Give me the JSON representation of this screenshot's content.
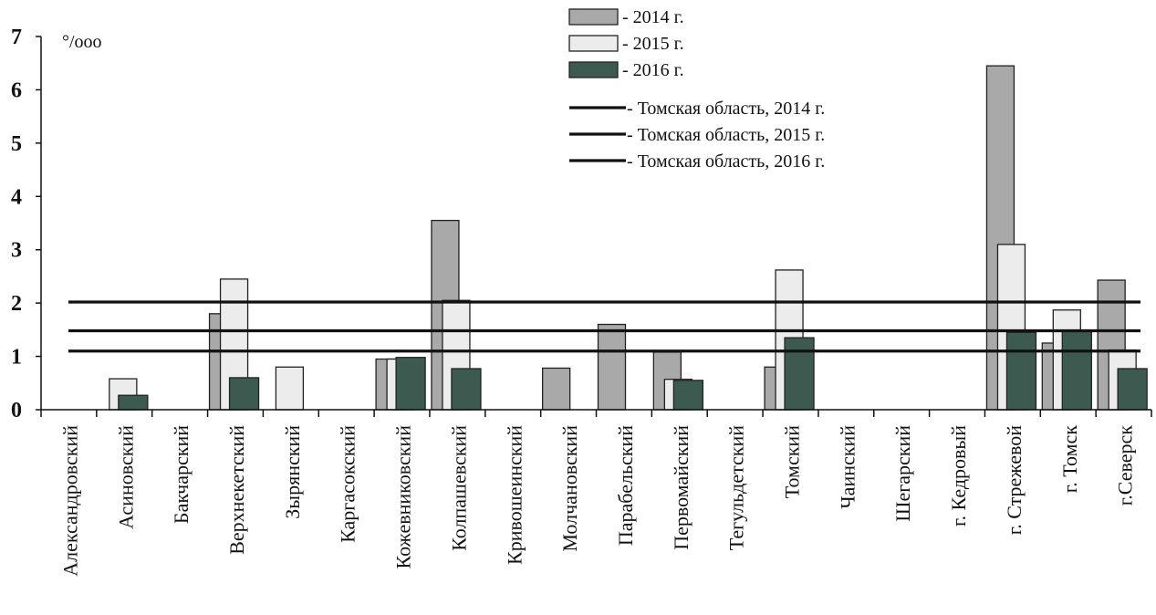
{
  "chart_data": {
    "type": "bar",
    "unit_label": "°/ooo",
    "ylim": [
      0,
      7
    ],
    "yticks": [
      "0",
      "1",
      "2",
      "3",
      "4",
      "5",
      "6",
      "7"
    ],
    "categories": [
      "Александровский",
      "Асиновский",
      "Бакчарский",
      "Верхнекетский",
      "Зырянский",
      "Каргасокский",
      "Кожевниковский",
      "Колпашевский",
      "Кривошеинский",
      "Молчановский",
      "Парабельский",
      "Первомайский",
      "Тегульдетский",
      "Томский",
      "Чаинский",
      "Шегарский",
      "г. Кедровый",
      "г. Стрежевой",
      "г. Томск",
      "г.Северск"
    ],
    "series": [
      {
        "name": "- 2014 г.",
        "color": "#a9a9a9",
        "values": [
          0,
          0,
          0,
          1.8,
          0,
          0,
          0.95,
          3.55,
          0,
          0.78,
          1.6,
          1.08,
          0,
          0.8,
          0,
          0,
          0,
          6.45,
          1.25,
          2.43
        ]
      },
      {
        "name": "- 2015 г.",
        "color": "#ececec",
        "values": [
          0,
          0.58,
          0,
          2.45,
          0.8,
          0,
          0.95,
          2.05,
          0,
          0,
          0,
          0.57,
          0,
          2.62,
          0,
          0,
          0,
          3.1,
          1.87,
          1.12
        ]
      },
      {
        "name": "- 2016 г.",
        "color": "#3c5a50",
        "values": [
          0,
          0.27,
          0,
          0.6,
          0,
          0,
          0.98,
          0.77,
          0,
          0,
          0,
          0.55,
          0,
          1.35,
          0,
          0,
          0,
          1.45,
          1.47,
          0.77
        ]
      }
    ],
    "reference_lines": [
      {
        "name": "- Томская область, 2014 г.",
        "value": 2.02
      },
      {
        "name": "- Томская область, 2015 г.",
        "value": 1.48
      },
      {
        "name": "- Томская область, 2016 г.",
        "value": 1.1
      }
    ],
    "legend_position": "top-right",
    "grid": false
  }
}
